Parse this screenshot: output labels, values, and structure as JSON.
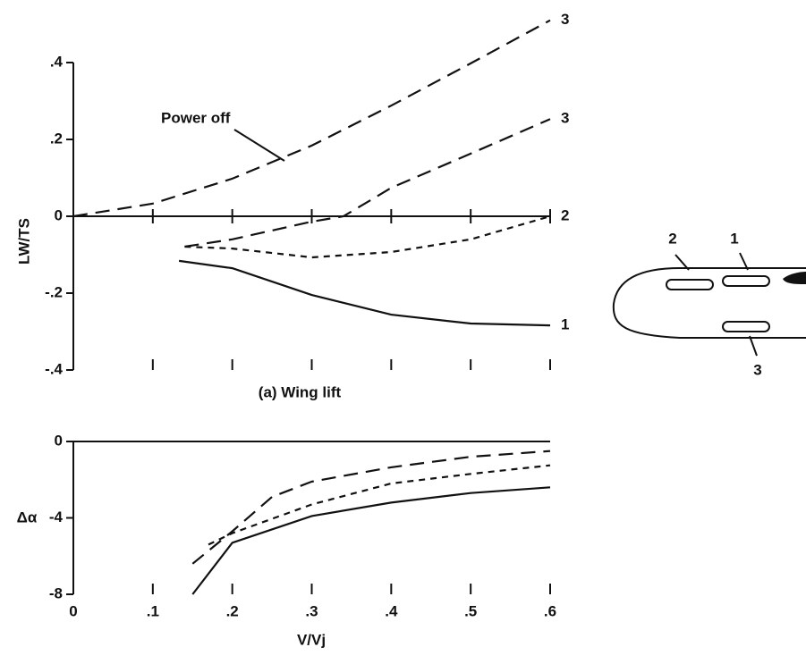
{
  "chart_data": [
    {
      "type": "line",
      "caption": "(a)  Wing lift",
      "ylabel": "LW/TS",
      "annotation": "Power off",
      "xlim": [
        0,
        0.6
      ],
      "xticks": [
        0,
        0.1,
        0.2,
        0.3,
        0.4,
        0.5,
        0.6
      ],
      "ylim": [
        -0.4,
        0.4
      ],
      "yticks": [
        {
          "value": 0.4,
          "label": ".4"
        },
        {
          "value": 0.2,
          "label": ".2"
        },
        0,
        {
          "value": -0.2,
          "label": "-.2"
        },
        {
          "value": -0.4,
          "label": "-.4"
        }
      ],
      "series": [
        {
          "name": "3",
          "dash": "long",
          "color": "#111",
          "x": [
            0,
            0.1,
            0.2,
            0.3,
            0.4,
            0.5,
            0.6
          ],
          "values": [
            0,
            0.033,
            0.098,
            0.184,
            0.288,
            0.398,
            0.51
          ]
        },
        {
          "name": "3",
          "dash": "long",
          "color": "#111",
          "x": [
            0.14,
            0.2,
            0.3,
            0.34,
            0.4,
            0.5,
            0.6
          ],
          "values": [
            -0.079,
            -0.06,
            -0.014,
            0,
            0.074,
            0.163,
            0.253
          ]
        },
        {
          "name": "2",
          "dash": "short",
          "color": "#111",
          "x": [
            0.14,
            0.2,
            0.3,
            0.4,
            0.5,
            0.6
          ],
          "values": [
            -0.079,
            -0.084,
            -0.107,
            -0.093,
            -0.06,
            0
          ]
        },
        {
          "name": "1",
          "dash": "solid",
          "color": "#111",
          "x": [
            0.133,
            0.2,
            0.3,
            0.4,
            0.5,
            0.6
          ],
          "values": [
            -0.116,
            -0.135,
            -0.205,
            -0.256,
            -0.279,
            -0.284
          ]
        }
      ]
    },
    {
      "type": "line",
      "ylabel": "Δα",
      "xlabel": "V/Vj",
      "xlim": [
        0,
        0.6
      ],
      "xticks": [
        0,
        {
          "value": 0.1,
          "label": ".1"
        },
        {
          "value": 0.2,
          "label": ".2"
        },
        {
          "value": 0.3,
          "label": ".3"
        },
        {
          "value": 0.4,
          "label": ".4"
        },
        {
          "value": 0.5,
          "label": ".5"
        },
        {
          "value": 0.6,
          "label": ".6"
        }
      ],
      "ylim": [
        -8,
        0
      ],
      "yticks": [
        0,
        -4,
        -8
      ],
      "series": [
        {
          "dash": "long",
          "color": "#111",
          "x": [
            0.15,
            0.2,
            0.25,
            0.3,
            0.4,
            0.5,
            0.6
          ],
          "values": [
            -6.4,
            -4.7,
            -2.9,
            -2.1,
            -1.35,
            -0.8,
            -0.5
          ]
        },
        {
          "dash": "short",
          "color": "#111",
          "x": [
            0.17,
            0.2,
            0.3,
            0.4,
            0.5,
            0.6
          ],
          "values": [
            -5.4,
            -4.8,
            -3.3,
            -2.2,
            -1.7,
            -1.25
          ]
        },
        {
          "dash": "solid",
          "color": "#111",
          "x": [
            0.15,
            0.2,
            0.3,
            0.4,
            0.5,
            0.6
          ],
          "values": [
            -8,
            -5.3,
            -3.9,
            -3.2,
            -2.7,
            -2.4
          ]
        }
      ]
    }
  ],
  "diagram": {
    "labels": [
      "2",
      "1",
      "3"
    ]
  }
}
